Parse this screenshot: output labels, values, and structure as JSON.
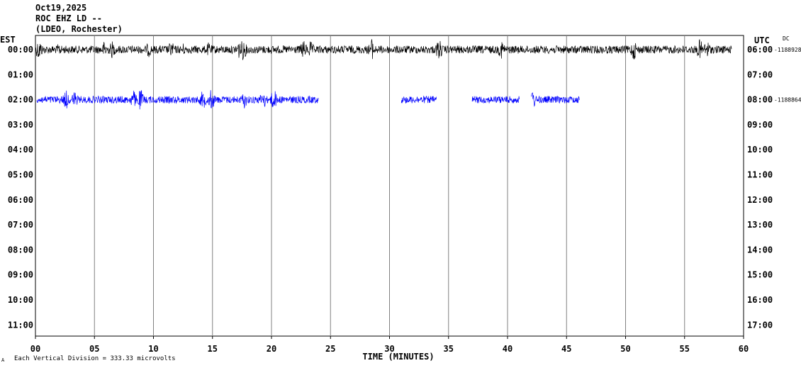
{
  "header": {
    "date": "Oct19,2025",
    "station": "ROC EHZ LD --",
    "network": "(LDEO, Rochester)"
  },
  "left_axis_title": "EST",
  "right_axis_title": "UTC",
  "dc_label": "DC",
  "xlabel": "TIME (MINUTES)",
  "footer": {
    "corner_mark": "A",
    "scale_note": "Each Vertical Division =  333.33 microvolts"
  },
  "colors": {
    "trace_black": "#000000",
    "trace_blue": "#0000ff",
    "grid": "#808080"
  },
  "chart_data": {
    "type": "line",
    "title": "Oct19,2025",
    "x_ticks": [
      "00",
      "05",
      "10",
      "15",
      "20",
      "25",
      "30",
      "35",
      "40",
      "45",
      "50",
      "55",
      "60"
    ],
    "xlim": [
      0,
      60
    ],
    "left_ticks": [
      "00:00",
      "01:00",
      "02:00",
      "03:00",
      "04:00",
      "05:00",
      "06:00",
      "07:00",
      "08:00",
      "09:00",
      "10:00",
      "11:00"
    ],
    "right_ticks": [
      "06:00",
      "07:00",
      "08:00",
      "09:00",
      "10:00",
      "11:00",
      "12:00",
      "13:00",
      "14:00",
      "15:00",
      "16:00",
      "17:00"
    ],
    "dc_values": [
      {
        "row": "00:00",
        "value": "-1188928"
      },
      {
        "row": "02:00",
        "value": "-1188864"
      }
    ],
    "grid": true,
    "series": [
      {
        "row": 0,
        "color": "#000000",
        "segments": [
          [
            0,
            59
          ]
        ],
        "noise": 0.35,
        "bursts": [
          {
            "t": 0.3,
            "amp": 1.0
          },
          {
            "t": 2.0,
            "amp": 0.6
          },
          {
            "t": 5.9,
            "amp": 0.9
          },
          {
            "t": 6.5,
            "amp": 0.8
          },
          {
            "t": 9.6,
            "amp": 0.7
          },
          {
            "t": 11.5,
            "amp": 0.8
          },
          {
            "t": 12.5,
            "amp": 0.6
          },
          {
            "t": 14.7,
            "amp": 0.7
          },
          {
            "t": 17.2,
            "amp": 0.9
          },
          {
            "t": 17.6,
            "amp": 1.0
          },
          {
            "t": 22.7,
            "amp": 0.9
          },
          {
            "t": 23.3,
            "amp": 0.8
          },
          {
            "t": 28.5,
            "amp": 1.0
          },
          {
            "t": 34.2,
            "amp": 1.0
          },
          {
            "t": 39.5,
            "amp": 0.9
          },
          {
            "t": 50.7,
            "amp": 1.0
          },
          {
            "t": 56.3,
            "amp": 1.0
          },
          {
            "t": 56.9,
            "amp": 0.9
          }
        ]
      },
      {
        "row": 2,
        "color": "#0000ff",
        "segments": [
          [
            0.1,
            24.0
          ],
          [
            31.0,
            34.0
          ],
          [
            37.0,
            41.0
          ],
          [
            42.0,
            46.1
          ]
        ],
        "noise": 0.32,
        "bursts": [
          {
            "t": 2.6,
            "amp": 0.9
          },
          {
            "t": 3.3,
            "amp": 0.8
          },
          {
            "t": 8.3,
            "amp": 0.9
          },
          {
            "t": 8.9,
            "amp": 1.0
          },
          {
            "t": 14.2,
            "amp": 0.9
          },
          {
            "t": 14.9,
            "amp": 1.0
          },
          {
            "t": 17.7,
            "amp": 0.8
          },
          {
            "t": 19.3,
            "amp": 0.9
          },
          {
            "t": 20.2,
            "amp": 1.0
          },
          {
            "t": 42.1,
            "amp": 1.0
          }
        ]
      }
    ]
  }
}
